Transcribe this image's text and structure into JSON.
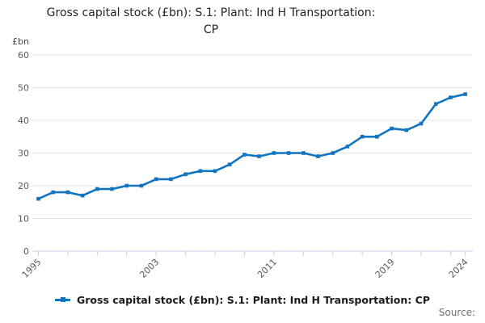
{
  "title": {
    "line1": "Gross capital stock (£bn): S.1: Plant: Ind H Transportation:",
    "line2": "CP"
  },
  "axis": {
    "unit_label": "£bn"
  },
  "legend": {
    "label": "Gross capital stock (£bn): S.1: Plant: Ind H Transportation: CP"
  },
  "footer": {
    "source_label": "Source:"
  },
  "colors": {
    "line": "#1175c2",
    "grid": "#e6e6e6",
    "axis": "#c3d0e6",
    "tick_label": "#595959",
    "title": "#232323",
    "source": "#707070"
  },
  "chart_data": {
    "type": "line",
    "title": "Gross capital stock (£bn): S.1: Plant: Ind H Transportation: CP",
    "unit": "£bn",
    "x": [
      1995,
      1996,
      1997,
      1998,
      1999,
      2000,
      2001,
      2002,
      2003,
      2004,
      2005,
      2006,
      2007,
      2008,
      2009,
      2010,
      2011,
      2012,
      2013,
      2014,
      2015,
      2016,
      2017,
      2018,
      2019,
      2020,
      2021,
      2022,
      2023,
      2024
    ],
    "series": [
      {
        "name": "Gross capital stock (£bn): S.1: Plant: Ind H Transportation: CP",
        "values": [
          16,
          18,
          18,
          17,
          19,
          19,
          20,
          20,
          22,
          22,
          23.5,
          24.5,
          24.5,
          26.5,
          29.5,
          29,
          30,
          30,
          30,
          29,
          30,
          32,
          35,
          35,
          37.5,
          37,
          39,
          45,
          47,
          48
        ]
      }
    ],
    "ylim": [
      0,
      60
    ],
    "yticks": [
      0,
      10,
      20,
      30,
      40,
      50,
      60
    ],
    "xtick_labels": [
      "1995",
      "2003",
      "2011",
      "2019",
      "2024"
    ],
    "x_minor_tick_interval": 2,
    "grid": "horizontal",
    "legend_position": "bottom"
  }
}
